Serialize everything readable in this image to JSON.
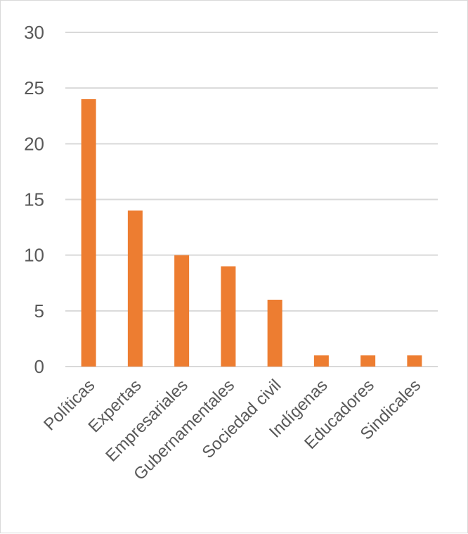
{
  "chart_data": {
    "type": "bar",
    "title": "",
    "xlabel": "",
    "ylabel": "",
    "categories": [
      "Políticas",
      "Expertas",
      "Empresariales",
      "Gubernamentales",
      "Sociedad civil",
      "Indígenas",
      "Educadores",
      "Sindicales"
    ],
    "values": [
      24,
      14,
      10,
      9,
      6,
      1,
      1,
      1
    ],
    "ylim": [
      0,
      30
    ],
    "yticks": [
      0,
      5,
      10,
      15,
      20,
      25,
      30
    ],
    "grid": true,
    "legend": "none",
    "colors": {
      "bar": "#ed7d31",
      "grid": "#d9d9d9",
      "text": "#595959",
      "border": "#d9d9d9"
    }
  }
}
